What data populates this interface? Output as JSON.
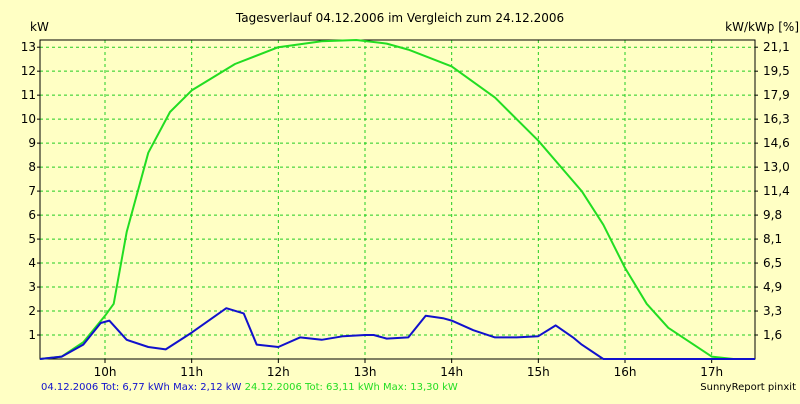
{
  "chart_data": {
    "type": "line",
    "title": "Tagesverlauf 04.12.2006 im Vergleich zum 24.12.2006",
    "ylabel_left": "kW",
    "ylabel_right": "kW/kWp [%]",
    "xlim": [
      9.25,
      17.5
    ],
    "ylim": [
      0,
      13.3
    ],
    "x_ticks": [
      10,
      11,
      12,
      13,
      14,
      15,
      16,
      17
    ],
    "x_tick_labels": [
      "10h",
      "11h",
      "12h",
      "13h",
      "14h",
      "15h",
      "16h",
      "17h"
    ],
    "y_ticks_left": [
      1,
      2,
      3,
      4,
      5,
      6,
      7,
      8,
      9,
      10,
      11,
      12,
      13
    ],
    "y_tick_labels_left": [
      "1",
      "2",
      "3",
      "4",
      "5",
      "6",
      "7",
      "8",
      "9",
      "10",
      "11",
      "12",
      "13"
    ],
    "y_ticks_right": [
      1,
      2,
      3,
      4,
      5,
      6,
      7,
      8,
      9,
      10,
      11,
      12,
      13
    ],
    "y_tick_labels_right": [
      "1,6",
      "3,3",
      "4,9",
      "6,5",
      "8,1",
      "9,8",
      "11,4",
      "13,0",
      "14,6",
      "16,3",
      "17,9",
      "19,5",
      "21,1"
    ],
    "grid": true,
    "series": [
      {
        "name": "24.12.2006",
        "color": "#22dd22",
        "x": [
          9.25,
          9.5,
          9.75,
          10.0,
          10.1,
          10.25,
          10.5,
          10.75,
          11.0,
          11.5,
          12.0,
          12.5,
          12.9,
          13.25,
          13.5,
          14.0,
          14.5,
          15.0,
          15.5,
          15.75,
          16.0,
          16.25,
          16.5,
          16.75,
          17.0,
          17.25,
          17.5
        ],
        "values": [
          0.0,
          0.1,
          0.7,
          1.8,
          2.3,
          5.3,
          8.6,
          10.3,
          11.2,
          12.3,
          13.0,
          13.25,
          13.3,
          13.15,
          12.9,
          12.2,
          10.9,
          9.1,
          7.0,
          5.6,
          3.8,
          2.3,
          1.3,
          0.7,
          0.1,
          0.0,
          0.0
        ]
      },
      {
        "name": "04.12.2006",
        "color": "#1111cc",
        "x": [
          9.25,
          9.5,
          9.75,
          9.95,
          10.05,
          10.25,
          10.5,
          10.7,
          11.0,
          11.4,
          11.6,
          11.75,
          12.0,
          12.25,
          12.5,
          12.75,
          13.0,
          13.1,
          13.25,
          13.5,
          13.7,
          13.9,
          14.0,
          14.25,
          14.5,
          14.75,
          15.0,
          15.2,
          15.4,
          15.5,
          15.75,
          16.0,
          16.25,
          16.5,
          16.75,
          17.0,
          17.25,
          17.5
        ],
        "values": [
          0.0,
          0.1,
          0.6,
          1.5,
          1.6,
          0.8,
          0.5,
          0.4,
          1.1,
          2.12,
          1.9,
          0.6,
          0.5,
          0.9,
          0.8,
          0.95,
          1.0,
          1.0,
          0.85,
          0.9,
          1.8,
          1.7,
          1.6,
          1.2,
          0.9,
          0.9,
          0.95,
          1.4,
          0.9,
          0.6,
          0.0,
          0.0,
          0.0,
          0.0,
          0.0,
          0.0,
          0.0,
          0.0
        ]
      }
    ],
    "legend_placement": "bottom-left"
  },
  "legend": {
    "blue_text": "04.12.2006 Tot: 6,77 kWh Max: 2,12 kW",
    "green_text": "24.12.2006 Tot: 63,11 kWh Max: 13,30 kW",
    "blue_color": "#1111cc",
    "green_color": "#22dd22"
  },
  "brand": "SunnyReport pinxit",
  "colors": {
    "background": "#ffffc4",
    "grid": "#22cc22",
    "axis": "#000000"
  }
}
